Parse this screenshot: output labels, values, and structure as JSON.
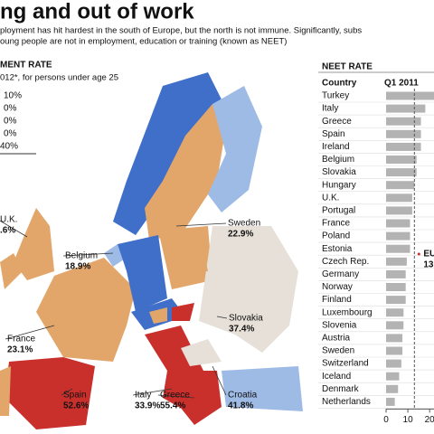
{
  "header": {
    "title": "ng and out of work",
    "subtitle": [
      "ployment has hit hardest in the south of Europe, but the north is not immune. Significantly, subs",
      "oung people are not in employment, education or training (known as NEET)"
    ]
  },
  "map": {
    "title": "MENT RATE",
    "subtitle": "012*, for persons under age 25",
    "legend": [
      "10%",
      "0%",
      "0%",
      "0%",
      "40%"
    ],
    "labels": [
      {
        "name": "Sweden",
        "value": "22.9%"
      },
      {
        "name": "U.K.",
        "value": ".6%"
      },
      {
        "name": "Belgium",
        "value": "18.9%"
      },
      {
        "name": "France",
        "value": "23.1%"
      },
      {
        "name": "Slovakia",
        "value": "37.4%"
      },
      {
        "name": "Croatia",
        "value": "41.8%"
      },
      {
        "name": "Spain",
        "value": "52.6%"
      },
      {
        "name": "Italy",
        "value": "33.9%"
      },
      {
        "name": "Greece",
        "value": "55.4%"
      }
    ]
  },
  "chart_data": {
    "type": "bar",
    "orientation": "horizontal",
    "title": "NEET RATE",
    "category_header": "Country",
    "value_header": "Q1 2011",
    "categories": [
      "Turkey",
      "Italy",
      "Greece",
      "Spain",
      "Ireland",
      "Belgium",
      "Slovakia",
      "Hungary",
      "U.K.",
      "Portugal",
      "France",
      "Poland",
      "Estonia",
      "Czech Rep.",
      "Germany",
      "Norway",
      "Finland",
      "Luxembourg",
      "Slovenia",
      "Austria",
      "Sweden",
      "Switzerland",
      "Iceland",
      "Denmark",
      "Netherlands"
    ],
    "values": [
      25,
      18,
      16,
      16,
      16,
      14,
      14,
      13,
      12,
      12,
      11,
      11,
      11,
      9.5,
      9,
      9,
      9,
      8,
      8,
      7.5,
      7.5,
      7,
      6,
      5.5,
      4
    ],
    "color": "#b3b3b3",
    "xlim": [
      0,
      22
    ],
    "xticks": [
      0,
      10,
      20
    ],
    "annotation": {
      "label": "EU",
      "value": 13
    }
  }
}
